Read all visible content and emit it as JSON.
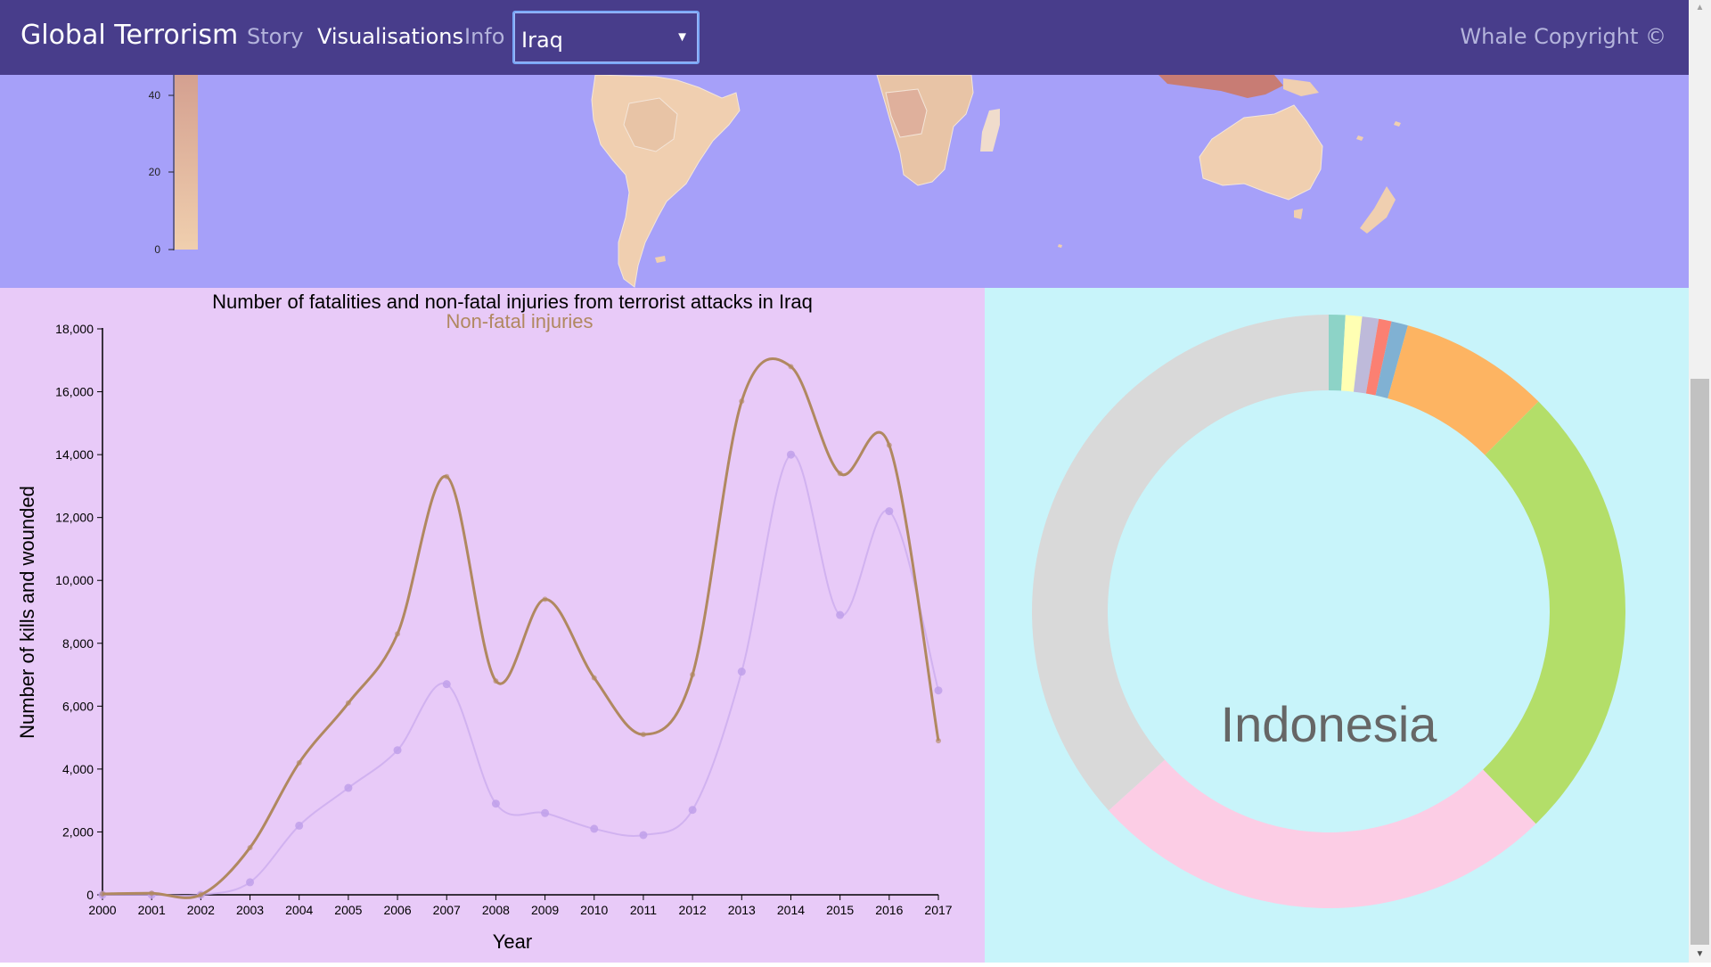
{
  "nav": {
    "brand": "Global Terrorism",
    "links": [
      "Story",
      "Visualisations",
      "Info"
    ],
    "country_select": "Iraq",
    "copyright": "Whale Copyright ©"
  },
  "map": {
    "legend_ticks": [
      "0",
      "20",
      "40"
    ],
    "colors": {
      "ocean": "#a6a0f9",
      "land_low": "#f0cfb0",
      "land_high": "#b06060"
    }
  },
  "colors": {
    "nav_bg": "#483d8b",
    "line_panel_bg": "#e8caf8",
    "donut_panel_bg": "#c8f4fa",
    "injuries_line": "#b08860",
    "fatalities_line": "#c9a9ee"
  },
  "chart_data": [
    {
      "type": "line",
      "title": "Number of fatalities and non-fatal injuries from terrorist attacks in Iraq",
      "hover_label": "Non-fatal injuries",
      "xlabel": "Year",
      "ylabel": "Number of kills and wounded",
      "ylim": [
        0,
        18000
      ],
      "yticks": [
        "0",
        "2,000",
        "4,000",
        "6,000",
        "8,000",
        "10,000",
        "12,000",
        "14,000",
        "16,000",
        "18,000"
      ],
      "x": [
        "2000",
        "2001",
        "2002",
        "2003",
        "2004",
        "2005",
        "2006",
        "2007",
        "2008",
        "2009",
        "2010",
        "2011",
        "2012",
        "2013",
        "2014",
        "2015",
        "2016",
        "2017"
      ],
      "series": [
        {
          "values": [
            30,
            50,
            0,
            1500,
            4200,
            6100,
            8300,
            13300,
            6800,
            9400,
            6900,
            5100,
            7000,
            15700,
            16800,
            13400,
            14300,
            4900
          ]
        },
        {
          "values": [
            0,
            0,
            0,
            400,
            2200,
            3400,
            4600,
            6700,
            2900,
            2600,
            2100,
            1900,
            2700,
            7100,
            14000,
            8900,
            12200,
            6500
          ]
        }
      ]
    },
    {
      "type": "pie",
      "center_label": "Indonesia",
      "values": [
        0.9,
        0.9,
        0.9,
        0.7,
        0.9,
        8.2,
        25.2,
        25.6,
        36.7
      ],
      "colors": [
        "#8dd3c7",
        "#ffffb3",
        "#bebada",
        "#fb8072",
        "#80b1d3",
        "#fdb462",
        "#b3de69",
        "#fccde5",
        "#d9d9d9"
      ]
    }
  ]
}
